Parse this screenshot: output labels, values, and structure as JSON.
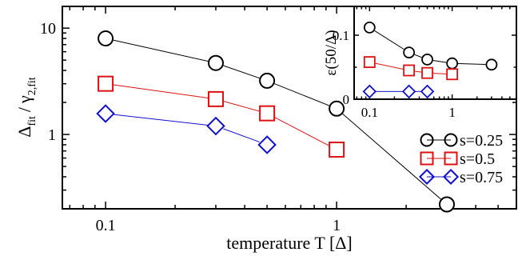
{
  "chart_data": [
    {
      "type": "line",
      "xlabel_main": "temperature T",
      "xlabel_unit": "[Δ]",
      "ylabel_num_main": "Δ",
      "ylabel_num_sub": "fit",
      "ylabel_slash": "/",
      "ylabel_den_main": "γ",
      "ylabel_den_sub": "2,fit",
      "x_scale": "log",
      "y_scale": "log",
      "xlim": [
        0.065,
        6.0
      ],
      "ylim": [
        0.2,
        16.0
      ],
      "x_ticks": [
        {
          "value": 0.1,
          "label": "0.1"
        },
        {
          "value": 1,
          "label": "1"
        }
      ],
      "y_ticks": [
        {
          "value": 1,
          "label": "1"
        },
        {
          "value": 10,
          "label": "10"
        }
      ],
      "legend_position": "bottom-right",
      "series": [
        {
          "name": "s=0.25",
          "color": "#000000",
          "marker": "circle",
          "x": [
            0.1,
            0.3,
            0.5,
            1.0,
            3.0
          ],
          "y": [
            8.0,
            4.7,
            3.2,
            1.75,
            0.22
          ]
        },
        {
          "name": "s=0.5",
          "color": "#dd1111",
          "marker": "square",
          "x": [
            0.1,
            0.3,
            0.5,
            1.0
          ],
          "y": [
            3.0,
            2.15,
            1.58,
            0.72
          ]
        },
        {
          "name": "s=0.75",
          "color": "#1111cc",
          "marker": "diamond",
          "x": [
            0.1,
            0.3,
            0.5
          ],
          "y": [
            1.57,
            1.2,
            0.8
          ]
        }
      ]
    },
    {
      "type": "line",
      "inset": true,
      "ylabel": "ε(50/Δ)",
      "x_scale": "log",
      "y_scale": "linear",
      "xlim": [
        0.065,
        6.0
      ],
      "ylim": [
        0,
        0.145
      ],
      "x_ticks": [
        {
          "value": 0.1,
          "label": "0.1"
        },
        {
          "value": 1,
          "label": "1"
        }
      ],
      "y_ticks": [
        {
          "value": 0,
          "label": "0"
        },
        {
          "value": 0.1,
          "label": "0.1"
        }
      ],
      "series": [
        {
          "name": "s=0.25",
          "color": "#000000",
          "marker": "circle",
          "x": [
            0.1,
            0.3,
            0.5,
            1.0,
            3.0
          ],
          "y": [
            0.112,
            0.073,
            0.062,
            0.056,
            0.054
          ]
        },
        {
          "name": "s=0.5",
          "color": "#dd1111",
          "marker": "square",
          "x": [
            0.1,
            0.3,
            0.5,
            1.0
          ],
          "y": [
            0.058,
            0.045,
            0.041,
            0.039
          ]
        },
        {
          "name": "s=0.75",
          "color": "#1111cc",
          "marker": "diamond",
          "x": [
            0.1,
            0.3,
            0.5
          ],
          "y": [
            0.012,
            0.012,
            0.012
          ]
        }
      ]
    }
  ]
}
